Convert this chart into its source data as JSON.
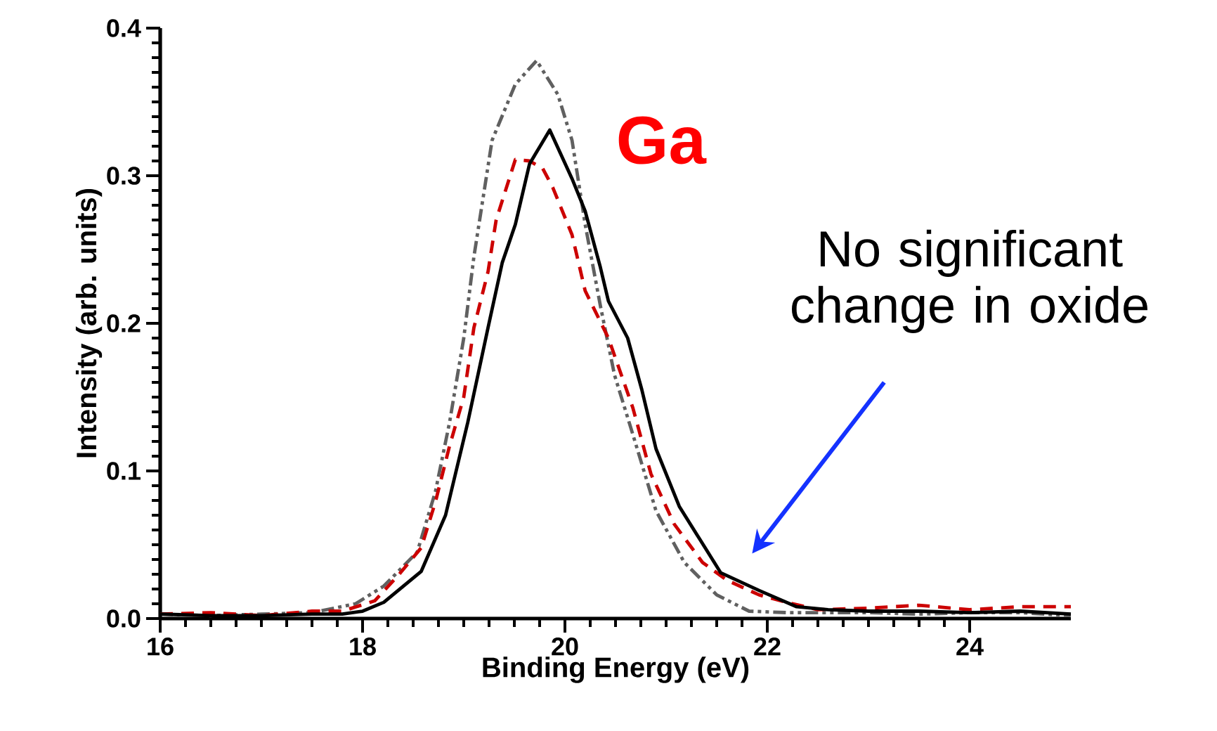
{
  "chart_data": {
    "type": "line",
    "xlabel": "Binding Energy (eV)",
    "ylabel": "Intensity (arb. units)",
    "xlim": [
      16,
      25
    ],
    "xticks": [
      16,
      18,
      20,
      22,
      24
    ],
    "ylim": [
      0,
      0.4
    ],
    "yticks": [
      {
        "value": 0,
        "label": "0.0"
      },
      0.1,
      0.2,
      0.3,
      0.4
    ],
    "grid": false,
    "annotations": [
      "Ga",
      "No significant change in oxide"
    ],
    "series": [
      {
        "color": "#606060",
        "line_style": "dashdot",
        "x": [
          16,
          16.5,
          17,
          17.5,
          17.93,
          18.21,
          18.54,
          18.72,
          18.86,
          19.0,
          19.1,
          19.28,
          19.51,
          19.72,
          19.93,
          20.07,
          20.2,
          20.35,
          20.49,
          20.67,
          20.9,
          21.18,
          21.5,
          21.82,
          22.2,
          22.6,
          23,
          23.5,
          24,
          24.5,
          25
        ],
        "values": [
          0.003,
          0.002,
          0.003,
          0.004,
          0.01,
          0.022,
          0.045,
          0.086,
          0.133,
          0.19,
          0.245,
          0.324,
          0.362,
          0.378,
          0.355,
          0.324,
          0.267,
          0.212,
          0.165,
          0.125,
          0.073,
          0.038,
          0.016,
          0.005,
          0.004,
          0.004,
          0.004,
          0.003,
          0.004,
          0.004,
          0.002
        ]
      },
      {
        "color": "#cc0000",
        "line_style": "dashed",
        "x": [
          16,
          16.5,
          17,
          17.5,
          17.8,
          18.12,
          18.35,
          18.58,
          18.72,
          18.86,
          19.0,
          19.1,
          19.24,
          19.32,
          19.51,
          19.65,
          19.78,
          19.88,
          20.07,
          20.2,
          20.43,
          20.67,
          20.85,
          21.08,
          21.36,
          21.6,
          21.92,
          22.19,
          22.5,
          23,
          23.5,
          24,
          24.5,
          25
        ],
        "values": [
          0.003,
          0.004,
          0.002,
          0.005,
          0.005,
          0.012,
          0.029,
          0.048,
          0.079,
          0.117,
          0.15,
          0.197,
          0.235,
          0.27,
          0.311,
          0.31,
          0.305,
          0.292,
          0.26,
          0.222,
          0.19,
          0.143,
          0.098,
          0.064,
          0.038,
          0.026,
          0.016,
          0.011,
          0.006,
          0.007,
          0.009,
          0.006,
          0.008,
          0.008
        ]
      },
      {
        "color": "#000000",
        "line_style": "solid",
        "x": [
          16,
          16.5,
          17,
          17.5,
          17.8,
          18.0,
          18.21,
          18.58,
          18.82,
          19.04,
          19.24,
          19.38,
          19.51,
          19.65,
          19.85,
          20.07,
          20.2,
          20.35,
          20.43,
          20.62,
          20.76,
          20.9,
          21.13,
          21.33,
          21.54,
          21.92,
          22.29,
          22.6,
          23,
          23.5,
          24,
          24.5,
          25
        ],
        "values": [
          0.003,
          0.002,
          0.002,
          0.003,
          0.003,
          0.005,
          0.011,
          0.032,
          0.07,
          0.133,
          0.197,
          0.241,
          0.267,
          0.308,
          0.331,
          0.298,
          0.276,
          0.238,
          0.215,
          0.19,
          0.155,
          0.115,
          0.076,
          0.054,
          0.031,
          0.019,
          0.008,
          0.006,
          0.005,
          0.005,
          0.004,
          0.005,
          0.003
        ]
      }
    ]
  }
}
